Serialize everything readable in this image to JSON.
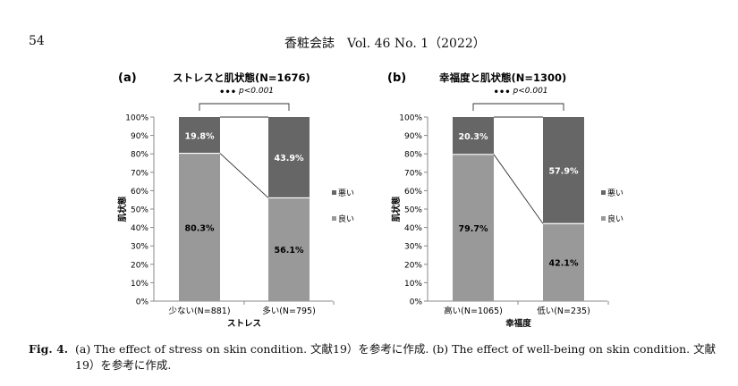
{
  "page_number": "54",
  "journal_header": "香粧会誌　Vol. 46  No. 1（2022）",
  "caption": {
    "label": "Fig. 4.",
    "text": "(a) The effect of stress on skin condition. 文献19）を参考に作成.  (b) The effect of well-being on skin condition. 文献19）を参考に作成."
  },
  "colors": {
    "good": "#999999",
    "bad": "#666666",
    "axis": "#888888"
  },
  "chart_data": [
    {
      "type": "bar",
      "stacked": "percent",
      "panel": "(a)",
      "title": "ストレスと肌状態(N=1676)",
      "xlabel": "ストレス",
      "ylabel": "肌状態",
      "ylim": [
        0,
        100
      ],
      "yticks": [
        "0%",
        "10%",
        "20%",
        "30%",
        "40%",
        "50%",
        "60%",
        "70%",
        "80%",
        "90%",
        "100%"
      ],
      "categories": [
        "少ない(N=881)",
        "多い(N=795)"
      ],
      "series": [
        {
          "name": "良い",
          "values": [
            80.3,
            56.1
          ],
          "labels": [
            "80.3%",
            "56.1%"
          ]
        },
        {
          "name": "悪い",
          "values": [
            19.8,
            43.9
          ],
          "labels": [
            "19.8%",
            "43.9%"
          ]
        }
      ],
      "legend": [
        "悪い",
        "良い"
      ],
      "significance": "•••",
      "p_value": "p<0.001"
    },
    {
      "type": "bar",
      "stacked": "percent",
      "panel": "(b)",
      "title": "幸福度と肌状態(N=1300)",
      "xlabel": "幸福度",
      "ylabel": "肌状態",
      "ylim": [
        0,
        100
      ],
      "yticks": [
        "0%",
        "10%",
        "20%",
        "30%",
        "40%",
        "50%",
        "60%",
        "70%",
        "80%",
        "90%",
        "100%"
      ],
      "categories": [
        "高い(N=1065)",
        "低い(N=235)"
      ],
      "series": [
        {
          "name": "良い",
          "values": [
            79.7,
            42.1
          ],
          "labels": [
            "79.7%",
            "42.1%"
          ]
        },
        {
          "name": "悪い",
          "values": [
            20.3,
            57.9
          ],
          "labels": [
            "20.3%",
            "57.9%"
          ]
        }
      ],
      "legend": [
        "悪い",
        "良い"
      ],
      "significance": "•••",
      "p_value": "p<0.001"
    }
  ]
}
